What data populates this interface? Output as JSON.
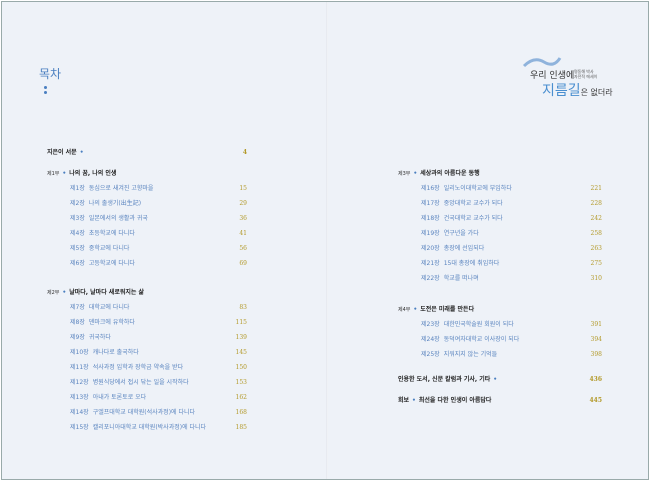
{
  "title": "목차",
  "logo": {
    "line1": "우리 인생에",
    "small1": "명동해 박사",
    "small2": "자전적 에세이",
    "line2": "지름길",
    "line2b": "은 없더라"
  },
  "left": {
    "preface": {
      "label": "지은이 서문",
      "page": "4"
    },
    "parts": [
      {
        "num": "제1부",
        "title": "나의 꿈, 나의 인생",
        "chapters": [
          {
            "num": "제1장",
            "title": "동심으로 새겨진 고향마을",
            "page": "15"
          },
          {
            "num": "제2장",
            "title": "나의 출생기(出生記)",
            "page": "29"
          },
          {
            "num": "제3장",
            "title": "일본에서의 생활과 귀국",
            "page": "36"
          },
          {
            "num": "제4장",
            "title": "초등학교에 다니다",
            "page": "41"
          },
          {
            "num": "제5장",
            "title": "중학교에 다니다",
            "page": "56"
          },
          {
            "num": "제6장",
            "title": "고등학교에 다니다",
            "page": "69"
          }
        ]
      },
      {
        "num": "제2부",
        "title": "날마다, 날마다 새로워지는 삶",
        "chapters": [
          {
            "num": "제7장",
            "title": "대학교에 다니다",
            "page": "83"
          },
          {
            "num": "제8장",
            "title": "덴마크에 유학하다",
            "page": "115"
          },
          {
            "num": "제9장",
            "title": "귀국하다",
            "page": "139"
          },
          {
            "num": "제10장",
            "title": "캐나다로 출국하다",
            "page": "145"
          },
          {
            "num": "제11장",
            "title": "석사과정 입학과 장학금 약속을 받다",
            "page": "150"
          },
          {
            "num": "제12장",
            "title": "병원식당에서 접시 닦는 일을 시작하다",
            "page": "153"
          },
          {
            "num": "제13장",
            "title": "아내가 토론토로 오다",
            "page": "162"
          },
          {
            "num": "제14장",
            "title": "구엘프대학교 대학원(석사과정)에 다니다",
            "page": "168"
          },
          {
            "num": "제15장",
            "title": "캘리포니아대학교 대학원(박사과정)에 다니다",
            "page": "185"
          }
        ]
      }
    ]
  },
  "right": {
    "parts": [
      {
        "num": "제3부",
        "title": "세상과의 아름다운 동행",
        "chapters": [
          {
            "num": "제16장",
            "title": "일리노이대학교에 부임하다",
            "page": "221"
          },
          {
            "num": "제17장",
            "title": "중앙대학교 교수가 되다",
            "page": "228"
          },
          {
            "num": "제18장",
            "title": "건국대학교 교수가 되다",
            "page": "242"
          },
          {
            "num": "제19장",
            "title": "연구년을 가다",
            "page": "258"
          },
          {
            "num": "제20장",
            "title": "총장에 선임되다",
            "page": "263"
          },
          {
            "num": "제21장",
            "title": "15대 총장에 취임하다",
            "page": "275"
          },
          {
            "num": "제22장",
            "title": "학교를 떠나며",
            "page": "310"
          }
        ]
      },
      {
        "num": "제4부",
        "title": "도전은 미래를 만든다",
        "chapters": [
          {
            "num": "제23장",
            "title": "대한민국학술원 회원이 되다",
            "page": "391"
          },
          {
            "num": "제24장",
            "title": "동덕여자대학교 이사장이 되다",
            "page": "394"
          },
          {
            "num": "제25장",
            "title": "지워지지 않는 기억들",
            "page": "398"
          }
        ]
      }
    ],
    "references": {
      "label": "인용한 도서, 신문 칼럼과 기사, 기타",
      "page": "436"
    },
    "epilogue": {
      "prefix": "회보",
      "label": "최선을 다한 인생이 아름답다",
      "page": "445"
    }
  },
  "colors": {
    "accent": "#4a7fc0",
    "page_number": "#b39a2a",
    "background": "#eef2f8"
  }
}
